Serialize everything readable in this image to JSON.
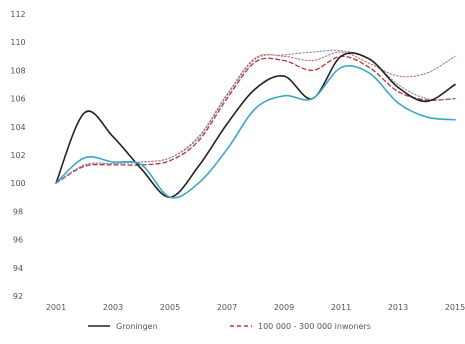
{
  "chart_data": {
    "type": "line",
    "title": "",
    "xlabel": "",
    "ylabel": "",
    "x_ticks": [
      "2001",
      "2003",
      "2005",
      "2007",
      "2009",
      "2011",
      "2013",
      "2015"
    ],
    "y_ticks": [
      "92",
      "94",
      "96",
      "98",
      "100",
      "102",
      "104",
      "106",
      "108",
      "110",
      "112"
    ],
    "xlim": [
      2001,
      2015
    ],
    "ylim": [
      92,
      112
    ],
    "grid": false,
    "legend_position": "bottom",
    "x": [
      2001,
      2002,
      2003,
      2004,
      2005,
      2006,
      2007,
      2008,
      2009,
      2010,
      2011,
      2012,
      2013,
      2014,
      2015
    ],
    "series": [
      {
        "name": "Groningen",
        "color": "#222222",
        "dash": "solid",
        "values": [
          100.0,
          105.0,
          103.3,
          101.0,
          99.0,
          101.2,
          104.2,
          106.7,
          107.6,
          106.0,
          109.0,
          108.8,
          106.8,
          105.8,
          107.0
        ]
      },
      {
        "name": "",
        "color": "#3aa8c8",
        "dash": "solid",
        "values": [
          100.0,
          101.8,
          101.5,
          101.3,
          99.0,
          100.0,
          102.4,
          105.3,
          106.2,
          106.0,
          108.2,
          107.8,
          105.7,
          104.7,
          104.5
        ]
      },
      {
        "name": "100 000 - 300 000 inwoners",
        "color": "#b03a32",
        "dash": "dashed",
        "values": [
          100.0,
          101.2,
          101.3,
          101.3,
          101.6,
          103.0,
          106.0,
          108.6,
          108.7,
          108.0,
          109.0,
          108.2,
          106.5,
          105.9,
          106.0
        ]
      },
      {
        "name": "",
        "color": "#c07070",
        "dash": "dotted",
        "values": [
          100.0,
          101.3,
          101.4,
          101.5,
          101.8,
          103.3,
          106.3,
          108.9,
          109.0,
          108.7,
          109.3,
          108.5,
          107.6,
          107.8,
          109.0
        ]
      },
      {
        "name": "",
        "color": "#8a8ab0",
        "dash": "dotted",
        "values": [
          100.0,
          101.3,
          101.4,
          101.5,
          101.8,
          103.2,
          106.2,
          108.8,
          109.1,
          109.3,
          109.4,
          108.8,
          107.0,
          106.0,
          106.0
        ]
      }
    ]
  }
}
